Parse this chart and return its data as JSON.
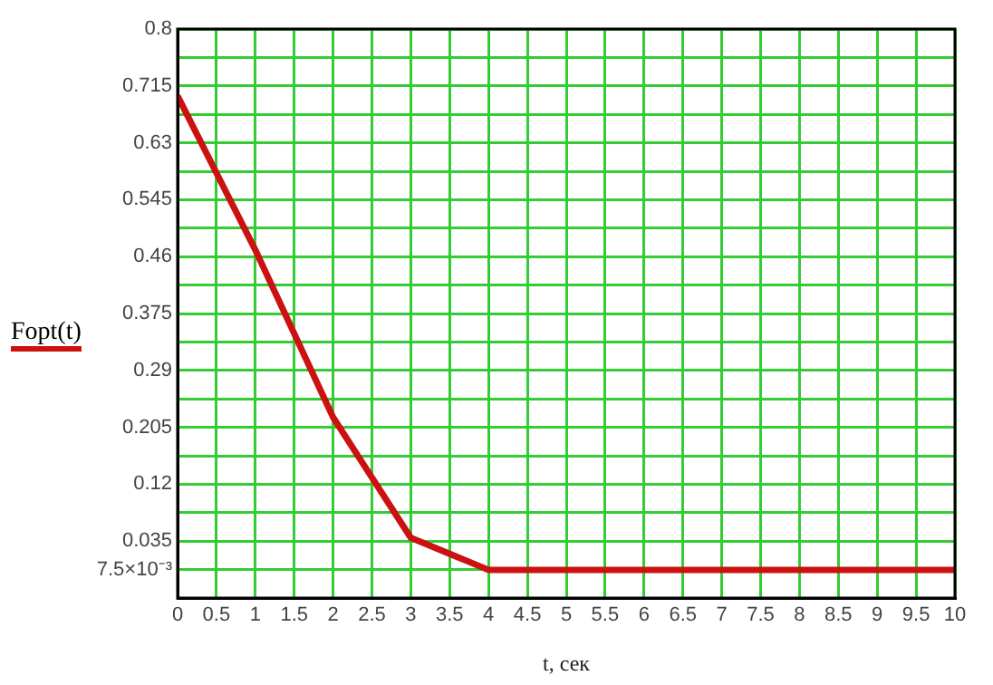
{
  "chart_data": {
    "type": "line",
    "xlabel": "t, сек",
    "legend": "left",
    "x": [
      0,
      1,
      2,
      3,
      4,
      10
    ],
    "series": [
      {
        "name": "Fopt(t)",
        "color": "#cc1111",
        "values": [
          0.7,
          0.47,
          0.22,
          0.04,
          -0.008,
          -0.008
        ]
      }
    ],
    "xlim": [
      0,
      10
    ],
    "xticks": [
      0,
      0.5,
      1,
      1.5,
      2,
      2.5,
      3,
      3.5,
      4,
      4.5,
      5,
      5.5,
      6,
      6.5,
      7,
      7.5,
      8,
      8.5,
      9,
      9.5,
      10
    ],
    "ylim": [
      -0.05,
      0.8
    ],
    "yticks": [
      {
        "value": -0.05,
        "label": null
      },
      {
        "value": -0.0075,
        "label": "7.5×10⁻³"
      },
      0.035,
      {
        "value": 0.0775,
        "label": null
      },
      0.12,
      {
        "value": 0.1625,
        "label": null
      },
      0.205,
      {
        "value": 0.2475,
        "label": null
      },
      0.29,
      {
        "value": 0.3325,
        "label": null
      },
      0.375,
      {
        "value": 0.4175,
        "label": null
      },
      0.46,
      {
        "value": 0.5025,
        "label": null
      },
      0.545,
      {
        "value": 0.5875,
        "label": null
      },
      0.63,
      {
        "value": 0.6725,
        "label": null
      },
      0.715,
      {
        "value": 0.7575,
        "label": null
      },
      0.8
    ],
    "grid": true,
    "marker": "none",
    "line_style": "solid"
  }
}
